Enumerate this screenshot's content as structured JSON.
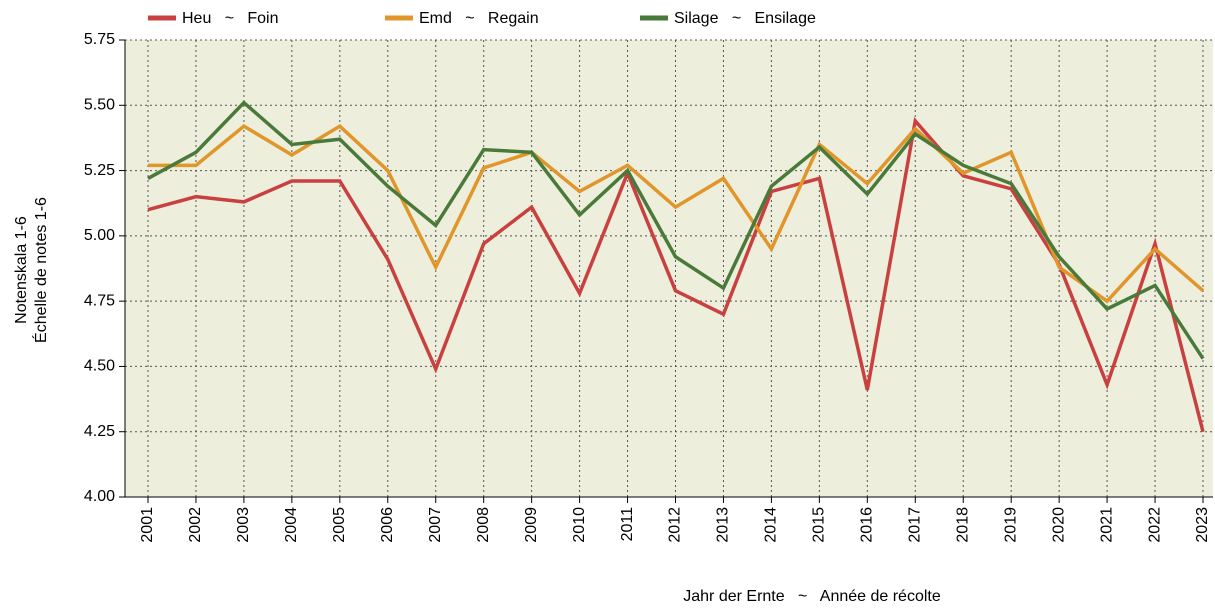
{
  "chart_data": {
    "type": "line",
    "y_label": [
      "Notenskala 1-6",
      "Échelle de notes 1-6"
    ],
    "x_label": "Jahr der Ernte   ~   Année de récolte",
    "categories": [
      "2001",
      "2002",
      "2003",
      "2004",
      "2005",
      "2006",
      "2007",
      "2008",
      "2009",
      "2010",
      "2011",
      "2012",
      "2013",
      "2014",
      "2015",
      "2016",
      "2017",
      "2018",
      "2019",
      "2020",
      "2021",
      "2022",
      "2023"
    ],
    "series": [
      {
        "name": "Heu   ~   Foin",
        "color": "#c8403f",
        "values": [
          5.1,
          5.15,
          5.13,
          5.21,
          5.21,
          4.91,
          4.49,
          4.97,
          5.11,
          4.78,
          5.24,
          4.79,
          4.7,
          5.17,
          5.22,
          4.41,
          5.44,
          5.23,
          5.18,
          4.89,
          4.43,
          4.97,
          4.25
        ]
      },
      {
        "name": "Emd   ~   Regain",
        "color": "#e0962a",
        "values": [
          5.27,
          5.27,
          5.42,
          5.31,
          5.42,
          5.25,
          4.88,
          5.26,
          5.32,
          5.17,
          5.27,
          5.11,
          5.22,
          4.95,
          5.35,
          5.2,
          5.41,
          5.24,
          5.32,
          4.88,
          4.75,
          4.95,
          4.79
        ]
      },
      {
        "name": "Silage   ~   Ensilage",
        "color": "#4a7a3a",
        "values": [
          5.22,
          5.32,
          5.51,
          5.35,
          5.37,
          5.19,
          5.04,
          5.33,
          5.32,
          5.08,
          5.25,
          4.92,
          4.8,
          5.19,
          5.34,
          5.16,
          5.39,
          5.27,
          5.2,
          4.92,
          4.72,
          4.81,
          4.53
        ]
      }
    ],
    "ylim": [
      4.0,
      5.75
    ],
    "yticks": [
      {
        "value": 4,
        "label": "4.00"
      },
      4.25,
      {
        "value": 4.5,
        "label": "4.50"
      },
      4.75,
      {
        "value": 5,
        "label": "5.00"
      },
      5.25,
      {
        "value": 5.5,
        "label": "5.50"
      },
      5.75
    ],
    "grid": true,
    "legend": "top",
    "background": "#eeeedc"
  }
}
